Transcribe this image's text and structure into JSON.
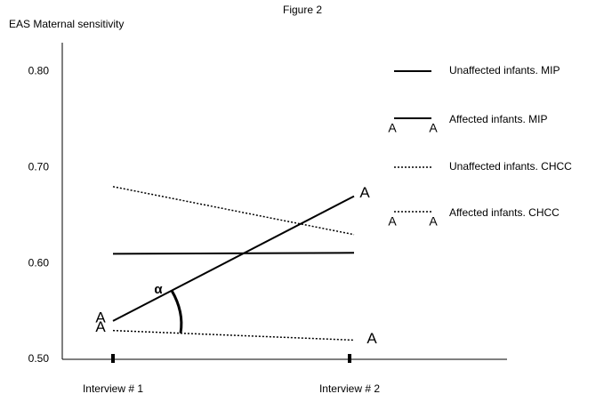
{
  "chart_data": {
    "type": "line",
    "title": "Figure 2",
    "y_label": "EAS Maternal sensitivity",
    "categories": [
      "Interview # 1",
      "Interview # 2"
    ],
    "ylim": [
      0.5,
      0.83
    ],
    "yticks": [
      {
        "value": 0.5,
        "label": "0.50"
      },
      {
        "value": 0.6,
        "label": "0.60"
      },
      {
        "value": 0.7,
        "label": "0.70"
      },
      {
        "value": 0.8,
        "label": "0.80"
      }
    ],
    "grid": false,
    "legend": "upper right",
    "annotation": "α",
    "series": [
      {
        "name": "Unaffected infants. MIP",
        "color": "#000000",
        "dash": "solid",
        "values": [
          0.61,
          0.611
        ]
      },
      {
        "name": "Affected infants. MIP",
        "color": "#000000",
        "dash": "solid",
        "marker": "A",
        "values": [
          0.54,
          0.67
        ]
      },
      {
        "name": "Unaffected infants. CHCC",
        "color": "#000000",
        "dash": "dotted",
        "values": [
          0.68,
          0.63
        ]
      },
      {
        "name": "Affected infants. CHCC",
        "color": "#000000",
        "dash": "dotted",
        "marker": "A",
        "values": [
          0.53,
          0.52
        ]
      }
    ]
  }
}
